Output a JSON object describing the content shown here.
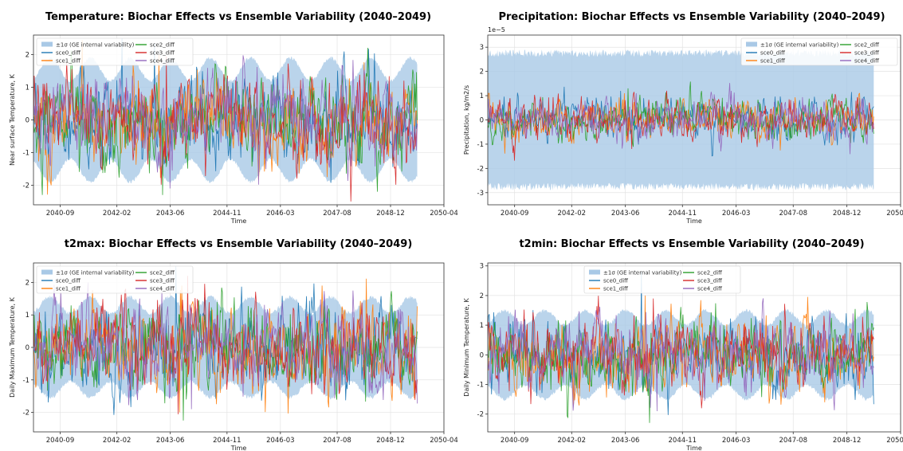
{
  "chart_data": [
    {
      "type": "line",
      "title": "Temperature: Biochar Effects vs Ensemble Variability (2040–2049)",
      "xlabel": "Time",
      "ylabel": "Near surface Temperature, K",
      "xlim": [
        "2040-01",
        "2050-04"
      ],
      "data_range": [
        "2040-01",
        "2049-08"
      ],
      "ylim": [
        -2.6,
        2.6
      ],
      "yticks": [
        -2,
        -1,
        0,
        1,
        2
      ],
      "xticks": [
        "2040-09",
        "2042-02",
        "2043-06",
        "2044-11",
        "2046-03",
        "2047-08",
        "2048-12",
        "2050-04"
      ],
      "sci_multiplier": "",
      "band": {
        "name": "±1σ (GE internal variability)",
        "base": 1.55,
        "seasonal_amp": 0.35,
        "jitter": 0.05,
        "color": "#a9c9e6"
      },
      "series": [
        {
          "name": "sce0_diff",
          "color": "#1f77b4",
          "amp": 0.55,
          "peak": 2.35
        },
        {
          "name": "sce1_diff",
          "color": "#ff7f0e",
          "amp": 0.55,
          "peak": 2.0
        },
        {
          "name": "sce2_diff",
          "color": "#2ca02c",
          "amp": 0.55,
          "peak": -2.3
        },
        {
          "name": "sce3_diff",
          "color": "#d62728",
          "amp": 0.55,
          "peak": 1.95
        },
        {
          "name": "sce4_diff",
          "color": "#9467bd",
          "amp": 0.55,
          "peak": -2.1
        }
      ],
      "legend": "top-left",
      "grid": true
    },
    {
      "type": "line",
      "title": "Precipitation: Biochar Effects vs Ensemble Variability (2040–2049)",
      "xlabel": "Time",
      "ylabel": "Precipitation, kg/m2/s",
      "xlim": [
        "2040-01",
        "2050-04"
      ],
      "data_range": [
        "2040-01",
        "2049-08"
      ],
      "ylim": [
        -3.5,
        3.5
      ],
      "yticks": [
        -3,
        -2,
        -1,
        0,
        1,
        2,
        3
      ],
      "xticks": [
        "2040-09",
        "2042-02",
        "2043-06",
        "2044-11",
        "2046-03",
        "2047-08",
        "2048-12",
        "2050-04"
      ],
      "sci_multiplier": "1e−5",
      "band": {
        "name": "±1σ (GE internal variability)",
        "base": 2.75,
        "seasonal_amp": 0.0,
        "jitter": 0.15,
        "color": "#a9c9e6"
      },
      "series": [
        {
          "name": "sce0_diff",
          "color": "#1f77b4",
          "amp": 0.35,
          "peak": 1.2
        },
        {
          "name": "sce1_diff",
          "color": "#ff7f0e",
          "amp": 0.35,
          "peak": 1.1
        },
        {
          "name": "sce2_diff",
          "color": "#2ca02c",
          "amp": 0.35,
          "peak": 1.3
        },
        {
          "name": "sce3_diff",
          "color": "#d62728",
          "amp": 0.35,
          "peak": -1.2
        },
        {
          "name": "sce4_diff",
          "color": "#9467bd",
          "amp": 0.35,
          "peak": 1.1
        }
      ],
      "legend": "top-right",
      "grid": true
    },
    {
      "type": "line",
      "title": "t2max: Biochar Effects vs Ensemble Variability (2040–2049)",
      "xlabel": "Time",
      "ylabel": "Daily Maximum Temperature, K",
      "xlim": [
        "2040-01",
        "2050-04"
      ],
      "data_range": [
        "2040-01",
        "2049-08"
      ],
      "ylim": [
        -2.6,
        2.6
      ],
      "yticks": [
        -2,
        -1,
        0,
        1,
        2
      ],
      "xticks": [
        "2040-09",
        "2042-02",
        "2043-06",
        "2044-11",
        "2046-03",
        "2047-08",
        "2048-12",
        "2050-04"
      ],
      "sci_multiplier": "",
      "band": {
        "name": "±1σ (GE internal variability)",
        "base": 1.3,
        "seasonal_amp": 0.25,
        "jitter": 0.06,
        "color": "#a9c9e6"
      },
      "series": [
        {
          "name": "sce0_diff",
          "color": "#1f77b4",
          "amp": 0.55,
          "peak": 2.5
        },
        {
          "name": "sce1_diff",
          "color": "#ff7f0e",
          "amp": 0.55,
          "peak": -2.0
        },
        {
          "name": "sce2_diff",
          "color": "#2ca02c",
          "amp": 0.55,
          "peak": -2.25
        },
        {
          "name": "sce3_diff",
          "color": "#d62728",
          "amp": 0.55,
          "peak": 2.2
        },
        {
          "name": "sce4_diff",
          "color": "#9467bd",
          "amp": 0.55,
          "peak": -1.9
        }
      ],
      "legend": "top-left",
      "grid": true
    },
    {
      "type": "line",
      "title": "t2min: Biochar Effects vs Ensemble Variability (2040–2049)",
      "xlabel": "Time",
      "ylabel": "Daily Minimum Temperature, K",
      "xlim": [
        "2040-01",
        "2050-04"
      ],
      "data_range": [
        "2040-01",
        "2049-08"
      ],
      "ylim": [
        -2.6,
        3.1
      ],
      "yticks": [
        -2,
        -1,
        0,
        1,
        2,
        3
      ],
      "xticks": [
        "2040-09",
        "2042-02",
        "2043-06",
        "2044-11",
        "2046-03",
        "2047-08",
        "2048-12",
        "2050-04"
      ],
      "sci_multiplier": "",
      "band": {
        "name": "±1σ (GE internal variability)",
        "base": 1.25,
        "seasonal_amp": 0.25,
        "jitter": 0.06,
        "color": "#a9c9e6"
      },
      "series": [
        {
          "name": "sce0_diff",
          "color": "#1f77b4",
          "amp": 0.5,
          "peak": 2.8
        },
        {
          "name": "sce1_diff",
          "color": "#ff7f0e",
          "amp": 0.5,
          "peak": 2.0
        },
        {
          "name": "sce2_diff",
          "color": "#2ca02c",
          "amp": 0.5,
          "peak": -2.3
        },
        {
          "name": "sce3_diff",
          "color": "#d62728",
          "amp": 0.5,
          "peak": 1.9
        },
        {
          "name": "sce4_diff",
          "color": "#9467bd",
          "amp": 0.5,
          "peak": -1.9
        }
      ],
      "legend": "top-center",
      "grid": true
    }
  ]
}
